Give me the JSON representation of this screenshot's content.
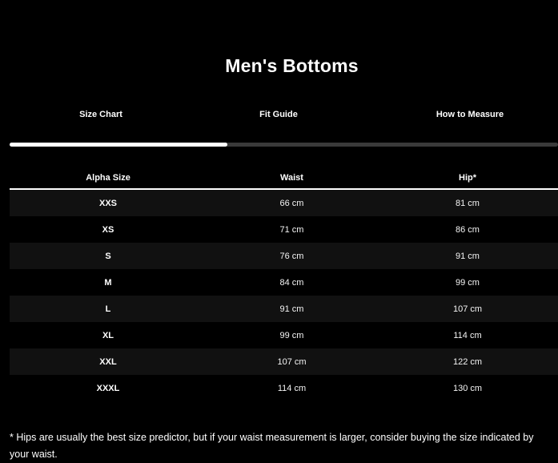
{
  "page": {
    "title": "Men's Bottoms",
    "background_color": "#000000",
    "text_color": "#ffffff"
  },
  "tabs": {
    "items": [
      {
        "label": "Size Chart",
        "active": true
      },
      {
        "label": "Fit Guide",
        "active": false
      },
      {
        "label": "How to Measure",
        "active": false
      }
    ],
    "indicator_active_color": "#ffffff",
    "indicator_track_color": "#3a3a3a"
  },
  "table": {
    "columns": [
      "Alpha Size",
      "Waist",
      "Hip*"
    ],
    "stripe_color": "#111111",
    "rows": [
      {
        "size": "XXS",
        "waist": "66 cm",
        "hip": "81 cm"
      },
      {
        "size": "XS",
        "waist": "71 cm",
        "hip": "86 cm"
      },
      {
        "size": "S",
        "waist": "76 cm",
        "hip": "91 cm"
      },
      {
        "size": "M",
        "waist": "84 cm",
        "hip": "99 cm"
      },
      {
        "size": "L",
        "waist": "91 cm",
        "hip": "107 cm"
      },
      {
        "size": "XL",
        "waist": "99 cm",
        "hip": "114 cm"
      },
      {
        "size": "XXL",
        "waist": "107 cm",
        "hip": "122 cm"
      },
      {
        "size": "XXXL",
        "waist": "114 cm",
        "hip": "130 cm"
      }
    ]
  },
  "footnote": "* Hips are usually the best size predictor, but if your waist measurement is larger, consider buying the size indicated by your waist."
}
